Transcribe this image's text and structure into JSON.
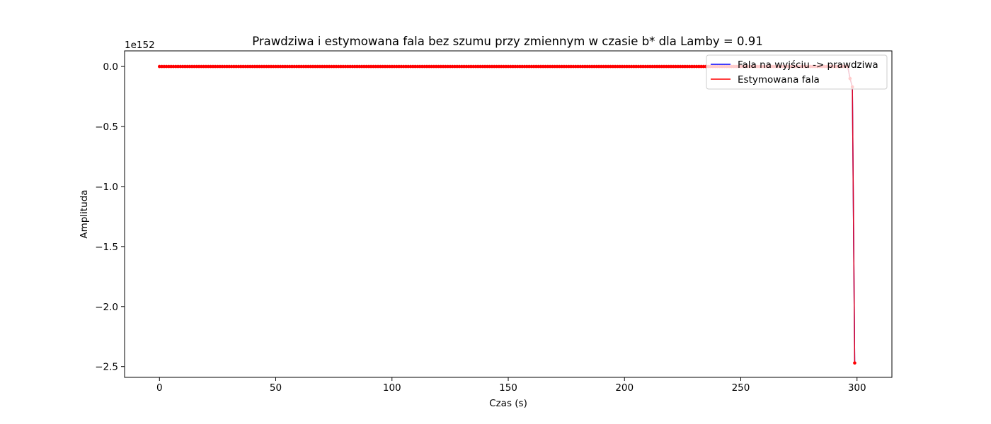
{
  "chart_data": {
    "type": "line",
    "title": "Prawdziwa i estymowana fala bez szumu przy zmiennym w czasie b* dla Lamby = 0.91",
    "xlabel": "Czas (s)",
    "ylabel": "Amplituda",
    "offset_text": "1e152",
    "xlim": [
      -15,
      315
    ],
    "ylim": [
      -2.59,
      0.13
    ],
    "xticks": [
      0,
      50,
      100,
      150,
      200,
      250,
      300
    ],
    "yticks": [
      0.0,
      -0.5,
      -1.0,
      -1.5,
      -2.0,
      -2.5
    ],
    "xtick_labels": [
      "0",
      "50",
      "100",
      "150",
      "200",
      "250",
      "300"
    ],
    "ytick_labels": [
      "0.0",
      "−0.5",
      "−1.0",
      "−1.5",
      "−2.0",
      "−2.5"
    ],
    "grid": false,
    "legend_position": "upper-right",
    "x": {
      "start": 0,
      "end": 299,
      "step": 1
    },
    "tail": [
      {
        "x": 296,
        "y": 0.0
      },
      {
        "x": 297,
        "y": -0.1
      },
      {
        "x": 298,
        "y": -0.17
      },
      {
        "x": 299,
        "y": -2.47
      }
    ],
    "series": [
      {
        "name": "Fala na wyjściu -> prawdziwa",
        "color": "#0000ff",
        "marker_color": "#ffc0cb"
      },
      {
        "name": "Estymowana fala",
        "color": "#ff0000",
        "marker_color": "#ff0000"
      }
    ]
  }
}
